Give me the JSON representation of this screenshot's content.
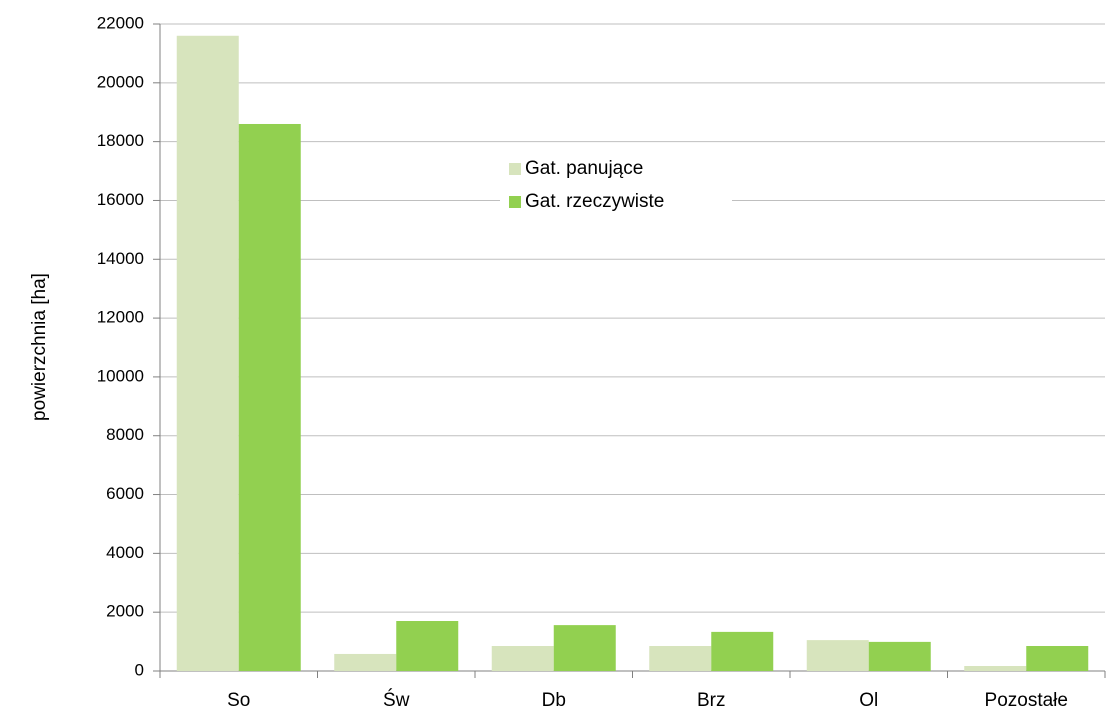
{
  "chart_data": {
    "type": "bar",
    "categories": [
      "So",
      "Św",
      "Db",
      "Brz",
      "Ol",
      "Pozostałe"
    ],
    "series": [
      {
        "name": "Gat. panujące",
        "color": "#d7e4bd",
        "values": [
          21600,
          580,
          850,
          850,
          1050,
          170
        ]
      },
      {
        "name": "Gat. rzeczywiste",
        "color": "#92d050",
        "values": [
          18600,
          1700,
          1560,
          1330,
          990,
          850
        ]
      }
    ],
    "y_label": "powierzchnia [ha]",
    "ylim": [
      0,
      22000
    ],
    "yticks": [
      0,
      2000,
      4000,
      6000,
      8000,
      10000,
      12000,
      14000,
      16000,
      18000,
      20000,
      22000
    ],
    "grid": true,
    "legend": "center"
  }
}
